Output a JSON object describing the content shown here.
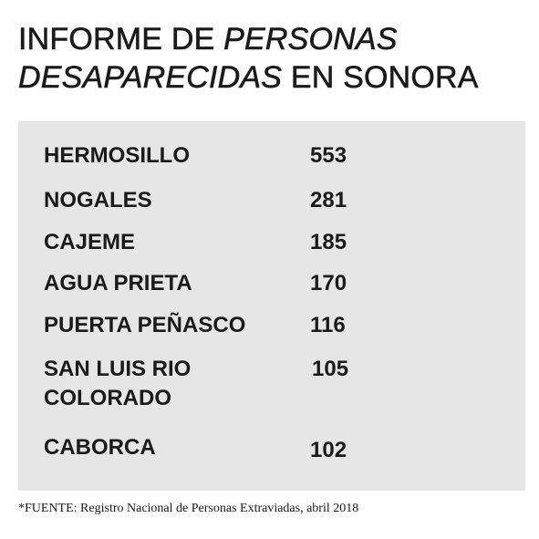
{
  "title": {
    "part1": "INFORME DE ",
    "part2_italic": "PERSONAS",
    "part3_italic": "DESAPARECIDAS",
    "part4": " EN SONORA"
  },
  "table": {
    "rows": [
      {
        "city": "HERMOSILLO",
        "count": "553"
      },
      {
        "city": "NOGALES",
        "count": "281"
      },
      {
        "city": "CAJEME",
        "count": "185"
      },
      {
        "city": "AGUA PRIETA",
        "count": "170"
      },
      {
        "city": "PUERTA PEÑASCO",
        "count": "116"
      },
      {
        "city_line1": "SAN LUIS RIO",
        "city_line2": "COLORADO",
        "count": "105"
      },
      {
        "city": "CABORCA",
        "count": "102"
      }
    ]
  },
  "source": "*FUENTE: Registro Nacional de Personas Extraviadas, abril 2018",
  "colors": {
    "panel_background": "#e6e6e7",
    "text": "#1a1a1a"
  }
}
